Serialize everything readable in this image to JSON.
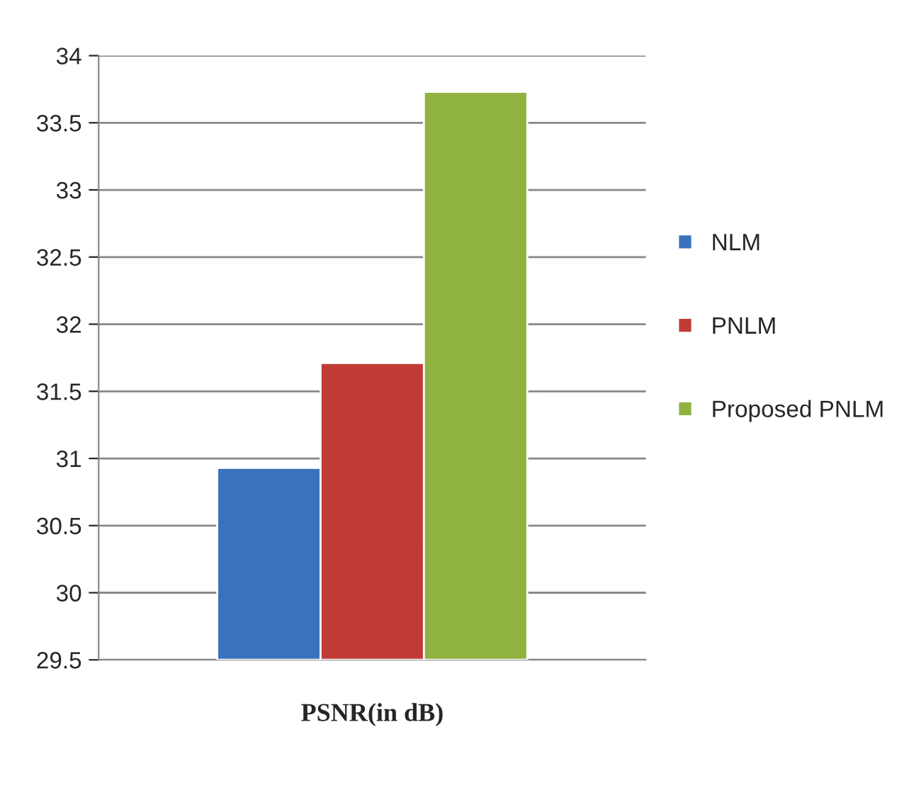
{
  "chart_data": {
    "type": "bar",
    "categories": [
      "PSNR(in dB)"
    ],
    "series": [
      {
        "name": "NLM",
        "color": "#3a72bd",
        "values": [
          30.93
        ]
      },
      {
        "name": "PNLM",
        "color": "#c03a36",
        "values": [
          31.71
        ]
      },
      {
        "name": "Proposed PNLM",
        "color": "#8fb240",
        "values": [
          33.73
        ]
      }
    ],
    "ylim": [
      29.5,
      34
    ],
    "yticks": [
      29.5,
      30,
      30.5,
      31,
      31.5,
      32,
      32.5,
      33,
      33.5,
      34
    ],
    "grid": "y",
    "legend": "right"
  }
}
